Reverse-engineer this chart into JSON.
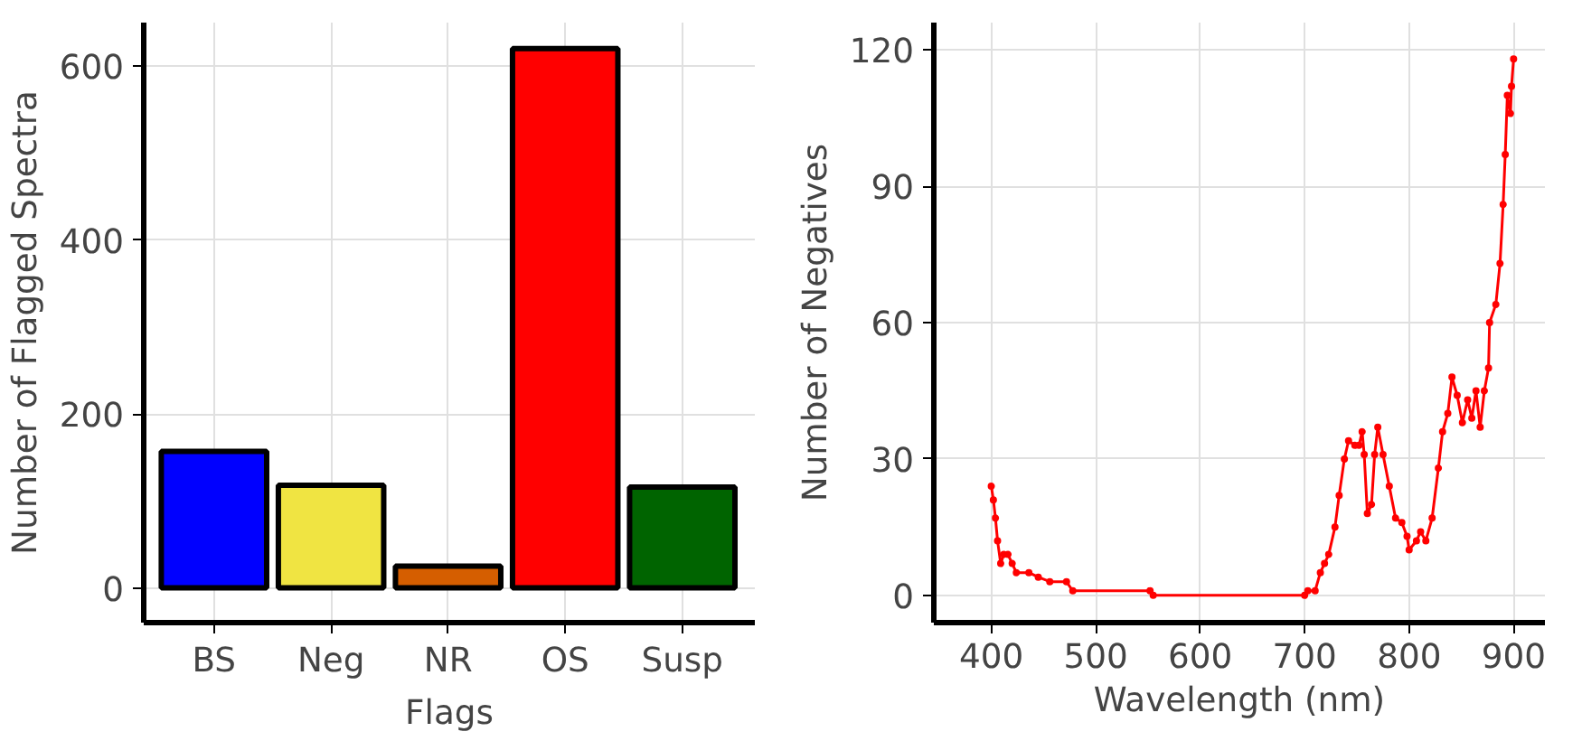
{
  "chart_data": [
    {
      "type": "bar",
      "xlabel": "Flags",
      "ylabel": "Number of Flagged Spectra",
      "categories": [
        "BS",
        "Neg",
        "NR",
        "OS",
        "Susp"
      ],
      "values": [
        157,
        118,
        25,
        620,
        116
      ],
      "colors": [
        "#0000ff",
        "#f0e442",
        "#d55e00",
        "#ff0000",
        "#006400"
      ],
      "ylim": [
        -40,
        650
      ],
      "yticks": [
        0,
        200,
        400,
        600
      ],
      "grid": true
    },
    {
      "type": "line",
      "xlabel": "Wavelength (nm)",
      "ylabel": "Number of Negatives",
      "series": [
        {
          "color": "#ff0000",
          "x": [
            400,
            402,
            404,
            406,
            409,
            412,
            416,
            420,
            424,
            436,
            445,
            456,
            472,
            478,
            552,
            555,
            700,
            703,
            710,
            715,
            719,
            723,
            729,
            733,
            738,
            742,
            748,
            752,
            755,
            757,
            760,
            764,
            767,
            770,
            775,
            781,
            787,
            793,
            798,
            800,
            807,
            811,
            816,
            822,
            828,
            832,
            837,
            841,
            846,
            851,
            856,
            860,
            864,
            868,
            872,
            876,
            877,
            883,
            887,
            890,
            892,
            894,
            897,
            898,
            900
          ],
          "values": [
            24,
            21,
            17,
            12,
            7,
            9,
            9,
            7,
            5,
            5,
            4,
            3,
            3,
            1,
            1,
            0,
            0,
            1,
            1,
            5,
            7,
            9,
            15,
            22,
            30,
            34,
            33,
            33,
            36,
            31,
            18,
            20,
            31,
            37,
            31,
            24,
            17,
            16,
            13,
            10,
            12,
            14,
            12,
            17,
            28,
            36,
            40,
            48,
            44,
            38,
            43,
            39,
            45,
            37,
            45,
            50,
            60,
            64,
            73,
            86,
            97,
            110,
            106,
            112,
            118
          ]
        }
      ],
      "xlim": [
        345,
        930
      ],
      "xticks": [
        400,
        500,
        600,
        700,
        800,
        900
      ],
      "ylim": [
        -6,
        126
      ],
      "yticks": [
        0,
        30,
        60,
        90,
        120
      ],
      "grid": true,
      "marker": "circle",
      "line_style": "solid"
    }
  ]
}
